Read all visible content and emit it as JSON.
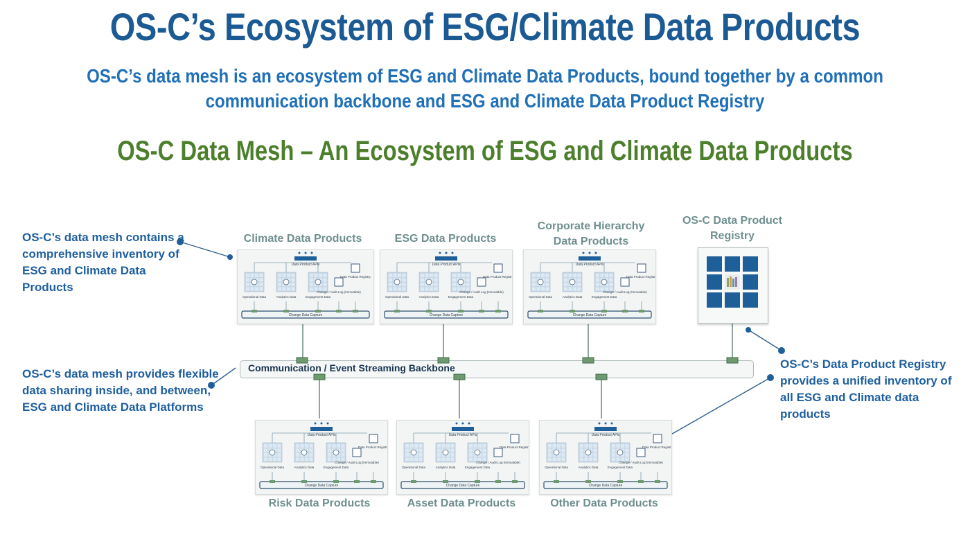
{
  "header": {
    "title": "OS-C’s Ecosystem of ESG/Climate Data Products",
    "subtitle_line1": "OS-C’s data mesh is an ecosystem of ESG and Climate Data Products, bound together by a common",
    "subtitle_line2": "communication backbone and ESG and Climate Data Product Registry",
    "mesh_title": "OS-C Data Mesh – An Ecosystem of ESG and Climate Data Products"
  },
  "notes": {
    "inventory": [
      "OS-C’s data mesh contains a",
      "comprehensive inventory of",
      "ESG and Climate Data",
      "Products"
    ],
    "sharing": [
      "OS-C’s data mesh provides flexible",
      "data sharing inside, and between,",
      "ESG and Climate Data Platforms"
    ],
    "registry": [
      "OS-C’s Data Product Registry",
      "provides a unified inventory of",
      "all ESG and Climate data",
      "products"
    ]
  },
  "products_top": [
    {
      "name": "Climate Data Products"
    },
    {
      "name": "ESG Data Products"
    },
    {
      "name": "Corporate Hierarchy Data Products"
    }
  ],
  "products_bottom": [
    {
      "name": "Risk Data Products"
    },
    {
      "name": "Asset Data Products"
    },
    {
      "name": "Other Data Products"
    }
  ],
  "registry": {
    "title_line1": "OS-C Data Product",
    "title_line2": "Registry"
  },
  "backbone": {
    "label": "Communication / Event Streaming Backbone"
  },
  "card_labels": {
    "apis": "Data Product APIs",
    "operational": "Operational Data",
    "analytics": "Analytics Data",
    "engagement": "Engagement Data",
    "audit": "Change / Audit Log (Immutable)",
    "registry": "Data Product Registry",
    "capture": "Change Data Capture"
  },
  "colors": {
    "title": "#1c5a93",
    "subtitle": "#2070b8",
    "mesh_title": "#4c7f2b",
    "notes": "#1e5f9e",
    "card_title": "#6f8f8f",
    "tiles": "#1f5f99",
    "connector": "#5b8a74"
  }
}
